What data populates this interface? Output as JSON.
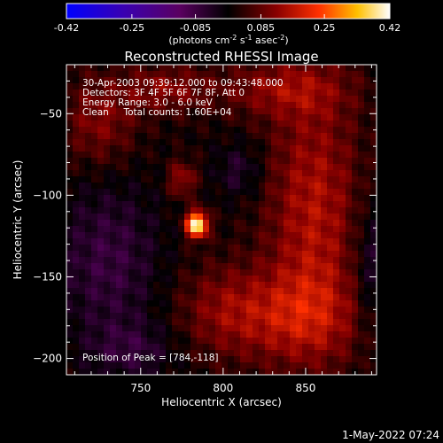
{
  "chart_data": {
    "type": "heatmap",
    "title": "Reconstructed RHESSI Image",
    "xlabel": "Heliocentric X (arcsec)",
    "ylabel": "Heliocentric Y (arcsec)",
    "xlim": [
      705,
      893
    ],
    "ylim": [
      -210,
      -20
    ],
    "xticks": [
      750,
      800,
      850
    ],
    "yticks": [
      -50,
      -100,
      -150,
      -200
    ],
    "colorbar": {
      "min": -0.42,
      "max": 0.42,
      "ticks": [
        -0.42,
        -0.25,
        -0.085,
        0.085,
        0.25,
        0.42
      ],
      "tick_labels": [
        "-0.42",
        "-0.25",
        "-0.085",
        "0.085",
        "0.25",
        "0.42"
      ],
      "unit_label_parts": [
        "(photons cm",
        "-2",
        " s",
        "-1",
        " asec",
        "-2",
        ")"
      ]
    },
    "info_lines": [
      "30-Apr-2003 09:39:12.000 to 09:43:48.000",
      "Detectors: 3F 4F 5F 6F 7F 8F, Att 0",
      "Energy Range: 3.0 - 6.0 keV",
      "Clean     Total counts: 1.60E+04"
    ],
    "peak_label": "Position of Peak = [784,-118]",
    "peak": [
      784,
      -118
    ],
    "features": [
      {
        "name": "peak-source",
        "x": 784,
        "y": -118,
        "value": 0.42,
        "sx": 4.5,
        "sy": 5.5
      },
      {
        "name": "bright-blob",
        "x": 775,
        "y": -90,
        "value": 0.12,
        "sx": 6,
        "sy": 8
      },
      {
        "name": "upper-left-region",
        "x": 725,
        "y": -55,
        "value": 0.1,
        "sx": 16,
        "sy": 20
      },
      {
        "name": "upper-center-region",
        "x": 765,
        "y": -35,
        "value": 0.1,
        "sx": 18,
        "sy": 10
      },
      {
        "name": "upper-right-region",
        "x": 835,
        "y": -35,
        "value": 0.1,
        "sx": 28,
        "sy": 12
      },
      {
        "name": "right-region",
        "x": 855,
        "y": -110,
        "value": 0.14,
        "sx": 20,
        "sy": 55
      },
      {
        "name": "lower-right-region",
        "x": 845,
        "y": -175,
        "value": 0.12,
        "sx": 28,
        "sy": 20
      },
      {
        "name": "center-left-region",
        "x": 800,
        "y": -170,
        "value": 0.09,
        "sx": 20,
        "sy": 20
      },
      {
        "name": "left-negative-band",
        "x": 730,
        "y": -140,
        "value": -0.09,
        "sx": 22,
        "sy": 35
      },
      {
        "name": "center-negative",
        "x": 810,
        "y": -85,
        "value": -0.07,
        "sx": 10,
        "sy": 12
      },
      {
        "name": "right-edge-negative",
        "x": 890,
        "y": -145,
        "value": -0.08,
        "sx": 8,
        "sy": 30
      },
      {
        "name": "lower-left-negative",
        "x": 745,
        "y": -195,
        "value": -0.07,
        "sx": 18,
        "sy": 12
      }
    ]
  },
  "footer": {
    "timestamp": "1-May-2022 07:24"
  }
}
